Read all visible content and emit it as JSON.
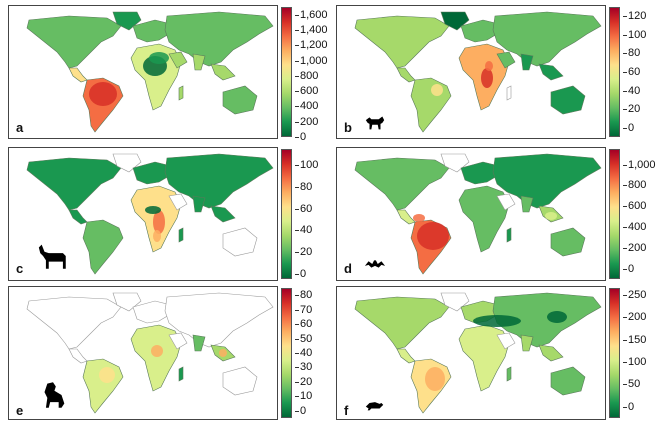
{
  "figure": {
    "colormap": [
      "#006837",
      "#1a9850",
      "#66bd63",
      "#a6d96a",
      "#d9ef8b",
      "#fee08b",
      "#fdae61",
      "#f46d43",
      "#d73027",
      "#a50026"
    ],
    "outline_color": "#9a9a9a"
  },
  "panels": [
    {
      "label": "a",
      "animal_icon": "none",
      "colorbar": {
        "min": 0,
        "max": 1700,
        "ticks": [
          0,
          200,
          400,
          600,
          800,
          "1,000",
          "1,200",
          "1,400",
          "1,600"
        ]
      }
    },
    {
      "label": "b",
      "animal_icon": "fox-silhouette-icon",
      "colorbar": {
        "min": -10,
        "max": 130,
        "ticks": [
          0,
          20,
          40,
          60,
          80,
          100,
          120
        ]
      }
    },
    {
      "label": "c",
      "animal_icon": "antelope-silhouette-icon",
      "colorbar": {
        "min": -5,
        "max": 115,
        "ticks": [
          0,
          20,
          40,
          60,
          80,
          100
        ]
      }
    },
    {
      "label": "d",
      "animal_icon": "bat-silhouette-icon",
      "colorbar": {
        "min": -100,
        "max": 1150,
        "ticks": [
          0,
          200,
          400,
          600,
          800,
          "1,000"
        ]
      }
    },
    {
      "label": "e",
      "animal_icon": "monkey-silhouette-icon",
      "colorbar": {
        "min": -5,
        "max": 85,
        "ticks": [
          0,
          10,
          20,
          30,
          40,
          50,
          60,
          70,
          80
        ]
      }
    },
    {
      "label": "f",
      "animal_icon": "rodent-silhouette-icon",
      "colorbar": {
        "min": -25,
        "max": 265,
        "ticks": [
          0,
          50,
          100,
          150,
          200,
          250
        ]
      }
    }
  ]
}
